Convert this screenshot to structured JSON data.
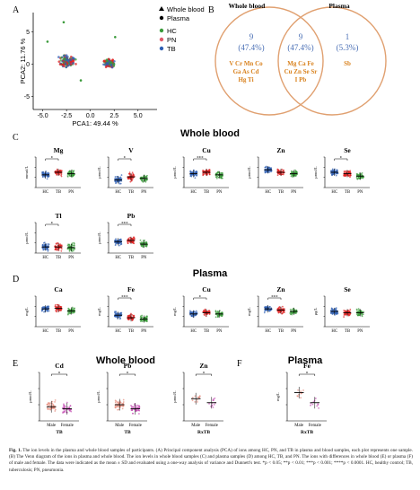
{
  "figure": {
    "panels": {
      "A": "A",
      "B": "B",
      "C": "C",
      "D": "D",
      "E": "E",
      "F": "F"
    },
    "section_titles": {
      "whole_blood_main": "Whole blood",
      "plasma_main": "Plasma",
      "whole_blood_e": "Whole blood",
      "plasma_f": "Plasma"
    },
    "colors": {
      "HC": "#2f5fb3",
      "TB": "#e02020",
      "PN": "#3a9a3a",
      "male": "#e58a7a",
      "female": "#c44fb4",
      "venn_outline": "#e0a070",
      "venn_text_blue": "#4a6fb5",
      "venn_text_orange": "#d9821e",
      "whole_blood_dot": "#4a8a4a"
    }
  },
  "chart_data": [
    {
      "id": "A",
      "type": "scatter",
      "xlabel": "PCA1: 49.44 %",
      "ylabel": "PCA2: 11.76 %",
      "xticks": [
        "-5.0",
        "-2.5",
        "0.0",
        "2.5",
        "5.0"
      ],
      "yticks": [
        "-5",
        "0",
        "5"
      ],
      "legend": [
        "Whole blood",
        "Plasma",
        "HC",
        "PN",
        "TB"
      ],
      "clusters": [
        {
          "name": "Whole blood",
          "center": [
            -2.4,
            0.5
          ],
          "spread": [
            1.1,
            2.0
          ]
        },
        {
          "name": "Plasma",
          "center": [
            2.0,
            0.2
          ],
          "spread": [
            0.8,
            1.3
          ]
        }
      ]
    },
    {
      "id": "B",
      "type": "venn",
      "sets": [
        "Whole blood",
        "Plasma"
      ],
      "left_only": {
        "count": "9",
        "pct": "(47.4%)",
        "elements": [
          "V Cr Mn Co",
          "Ga As Cd",
          "Hg Ti"
        ]
      },
      "both": {
        "count": "9",
        "pct": "(47.4%)",
        "elements": [
          "Mg Ca Fe",
          "Cu Zn Se Sr",
          "I Pb"
        ]
      },
      "right_only": {
        "count": "1",
        "pct": "(5.3%)",
        "elements": [
          "Sb"
        ]
      }
    },
    {
      "id": "C",
      "type": "scatter",
      "groups": [
        "HC",
        "TB",
        "PN"
      ],
      "plots": [
        {
          "title": "Mg",
          "unit": "mmol/L",
          "means": [
            0.5,
            0.6,
            0.55
          ],
          "ylim": [
            0,
            1.2
          ],
          "sig": "*"
        },
        {
          "title": "V",
          "unit": "μmol/L",
          "means": [
            0.25,
            0.35,
            0.3
          ],
          "ylim": [
            0,
            1
          ],
          "sig": "*"
        },
        {
          "title": "Cu",
          "unit": "μmol/L",
          "means": [
            0.55,
            0.6,
            0.5
          ],
          "ylim": [
            0,
            1.2
          ],
          "sig": "***"
        },
        {
          "title": "Zn",
          "unit": "μmol/L",
          "means": [
            0.7,
            0.6,
            0.55
          ],
          "ylim": [
            0,
            1.2
          ],
          "sig": ""
        },
        {
          "title": "Se",
          "unit": "μmol/L",
          "means": [
            0.6,
            0.55,
            0.45
          ],
          "ylim": [
            0,
            1.2
          ],
          "sig": "*"
        },
        {
          "title": "Tl",
          "unit": "μmol/L",
          "means": [
            0.2,
            0.2,
            0.18
          ],
          "ylim": [
            0,
            1
          ],
          "sig": "*"
        },
        {
          "title": "Pb",
          "unit": "μmol/L",
          "means": [
            0.45,
            0.5,
            0.35
          ],
          "ylim": [
            0,
            1.2
          ],
          "sig": "***"
        }
      ]
    },
    {
      "id": "D",
      "type": "scatter",
      "groups": [
        "HC",
        "TB",
        "PN"
      ],
      "plots": [
        {
          "title": "Ca",
          "unit": "mg/L",
          "means": [
            0.7,
            0.72,
            0.62
          ],
          "ylim": [
            0,
            1.2
          ],
          "sig": ""
        },
        {
          "title": "Fe",
          "unit": "mg/L",
          "means": [
            0.45,
            0.35,
            0.3
          ],
          "ylim": [
            0,
            1.2
          ],
          "sig": "***"
        },
        {
          "title": "Cu",
          "unit": "mg/L",
          "means": [
            0.5,
            0.55,
            0.5
          ],
          "ylim": [
            0,
            1.2
          ],
          "sig": "*"
        },
        {
          "title": "Zn",
          "unit": "mg/L",
          "means": [
            0.7,
            0.65,
            0.6
          ],
          "ylim": [
            0,
            1.2
          ],
          "sig": "***"
        },
        {
          "title": "Se",
          "unit": "μg/L",
          "means": [
            0.6,
            0.55,
            0.55
          ],
          "ylim": [
            0,
            1.2
          ],
          "sig": ""
        }
      ]
    },
    {
      "id": "E",
      "type": "scatter",
      "groups": [
        "Male",
        "Female"
      ],
      "plots": [
        {
          "title": "Cd",
          "unit": "μmol/L",
          "xlabel": "TB",
          "means": [
            0.35,
            0.3
          ],
          "ylim": [
            0,
            1.2
          ],
          "sig": "*"
        },
        {
          "title": "Pb",
          "unit": "μmol/L",
          "xlabel": "TB",
          "means": [
            0.4,
            0.3
          ],
          "ylim": [
            0,
            1.2
          ],
          "sig": "*"
        },
        {
          "title": "Zn",
          "unit": "μmol/L",
          "xlabel": "RxTB",
          "means": [
            0.55,
            0.45
          ],
          "ylim": [
            0,
            1.2
          ],
          "sig": "*"
        }
      ]
    },
    {
      "id": "F",
      "type": "scatter",
      "groups": [
        "Male",
        "Female"
      ],
      "plots": [
        {
          "title": "Fe",
          "unit": "mg/L",
          "xlabel": "RxTB",
          "means": [
            0.7,
            0.45
          ],
          "ylim": [
            0,
            1.2
          ],
          "sig": "*"
        }
      ]
    }
  ],
  "caption": {
    "label": "Fig. 1.",
    "text": "The ion levels in the plasma and whole blood samples of participants. (A) Principal component analysis (PCA) of ions among HC, PN, and TB in plasma and blood samples, each plot represents one sample. (B) The Venn diagram of the ions in plasma and whole blood. The ion levels in whole blood samples (C) and plasma samples (D) among HC, TB, and PN. The ions with differences in whole blood (E) or plasma (F) of male and female. The data were indicated as the mean ± SD and evaluated using a one-way analysis of variance and Dunnett's test. *p < 0.05; **p < 0.01; ***p < 0.001; ****p < 0.0001. HC, healthy control; TB, tuberculosis; PN, pneumonia."
  }
}
